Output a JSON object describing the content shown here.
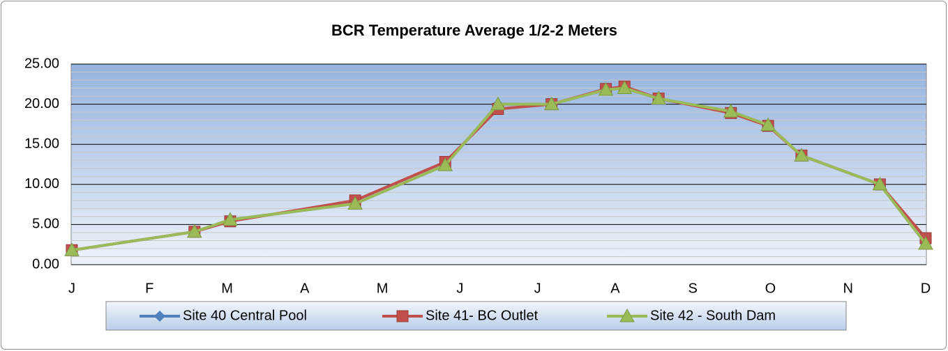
{
  "chart_data": {
    "type": "line",
    "title": "BCR Temperature Average 1/2-2 Meters",
    "x": [
      0,
      1.58,
      2.04,
      3.65,
      4.81,
      5.49,
      6.18,
      6.88,
      7.12,
      7.56,
      8.49,
      8.97,
      9.4,
      10.41,
      11
    ],
    "series": [
      {
        "name": "Site 40 Central Pool",
        "color": "#4f81bd",
        "marker": "diamond",
        "values": [
          1.8,
          4.1,
          5.6,
          7.6,
          12.4,
          20.0,
          20.0,
          21.8,
          22.0,
          20.7,
          19.1,
          17.4,
          13.6,
          10.0,
          2.6
        ]
      },
      {
        "name": "Site 41- BC Outlet",
        "color": "#c0504d",
        "marker": "square",
        "values": [
          1.8,
          4.1,
          5.4,
          8.0,
          12.8,
          19.4,
          20.0,
          21.9,
          22.2,
          20.7,
          18.9,
          17.3,
          13.6,
          10.0,
          3.3
        ]
      },
      {
        "name": "Site 42 - South Dam",
        "color": "#9bbb59",
        "marker": "triangle",
        "values": [
          1.8,
          4.1,
          5.6,
          7.6,
          12.4,
          20.0,
          20.0,
          21.8,
          22.0,
          20.7,
          19.1,
          17.4,
          13.6,
          10.0,
          2.6
        ]
      }
    ],
    "xlim": [
      0,
      11
    ],
    "xticks": [
      {
        "value": 0,
        "label": "J"
      },
      {
        "value": 1,
        "label": "F"
      },
      {
        "value": 2,
        "label": "M"
      },
      {
        "value": 3,
        "label": "A"
      },
      {
        "value": 4,
        "label": "M"
      },
      {
        "value": 5,
        "label": "J"
      },
      {
        "value": 6,
        "label": "J"
      },
      {
        "value": 7,
        "label": "A"
      },
      {
        "value": 8,
        "label": "S"
      },
      {
        "value": 9,
        "label": "O"
      },
      {
        "value": 10,
        "label": "N"
      },
      {
        "value": 11,
        "label": "D"
      }
    ],
    "ylim": [
      0,
      25
    ],
    "yticks": [
      {
        "value": 0,
        "label": "0.00"
      },
      {
        "value": 5,
        "label": "5.00"
      },
      {
        "value": 10,
        "label": "10.00"
      },
      {
        "value": 15,
        "label": "15.00"
      },
      {
        "value": 20,
        "label": "20.00"
      },
      {
        "value": 25,
        "label": "25.00"
      }
    ],
    "yminorticks": [
      1,
      2,
      3,
      4,
      6,
      7,
      8,
      9,
      11,
      12,
      13,
      14,
      16,
      17,
      18,
      19,
      21,
      22,
      23,
      24
    ],
    "grid": true,
    "legend": "bottom"
  }
}
